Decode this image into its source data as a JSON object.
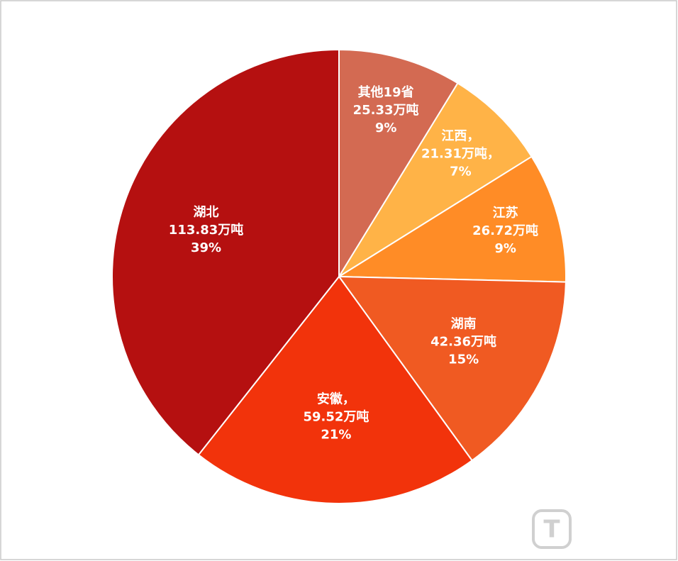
{
  "chart_data": {
    "type": "pie",
    "categories": [
      "其他19省",
      "江西，",
      "江苏",
      "湖南",
      "安徽，",
      "湖北"
    ],
    "values": [
      25.33,
      21.31,
      26.72,
      42.36,
      59.52,
      113.83
    ],
    "value_labels": [
      "25.33万吨",
      "21.31万吨，",
      "26.72万吨",
      "42.36万吨",
      "59.52万吨",
      "113.83万吨"
    ],
    "percent_labels": [
      "9%",
      "7%",
      "9%",
      "15%",
      "21%",
      "39%"
    ],
    "colors": [
      "#d36a52",
      "#ffb347",
      "#ff8c26",
      "#f05a22",
      "#f2330b",
      "#b51010"
    ],
    "watermark": "钛媒体"
  }
}
